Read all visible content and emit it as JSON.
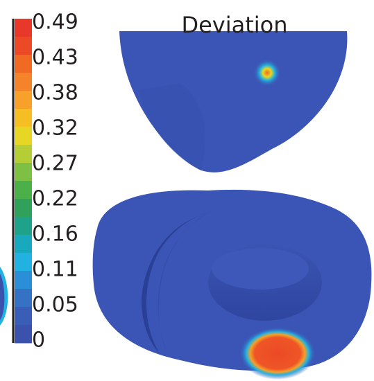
{
  "title": "Deviation",
  "colorbar": {
    "ticks": [
      "0.49",
      "0.43",
      "0.38",
      "0.32",
      "0.27",
      "0.22",
      "0.16",
      "0.11",
      "0.05",
      "0"
    ],
    "colors": [
      "#e8382a",
      "#ec4a26",
      "#f06a24",
      "#f4832a",
      "#f7a12a",
      "#f5bf24",
      "#e8d624",
      "#b5ce35",
      "#7dc044",
      "#4cb04a",
      "#2fa15a",
      "#1ea38a",
      "#18a9bf",
      "#22b2e2",
      "#2b8fd8",
      "#3572c6",
      "#3a5eb8",
      "#3b52ad"
    ]
  }
}
